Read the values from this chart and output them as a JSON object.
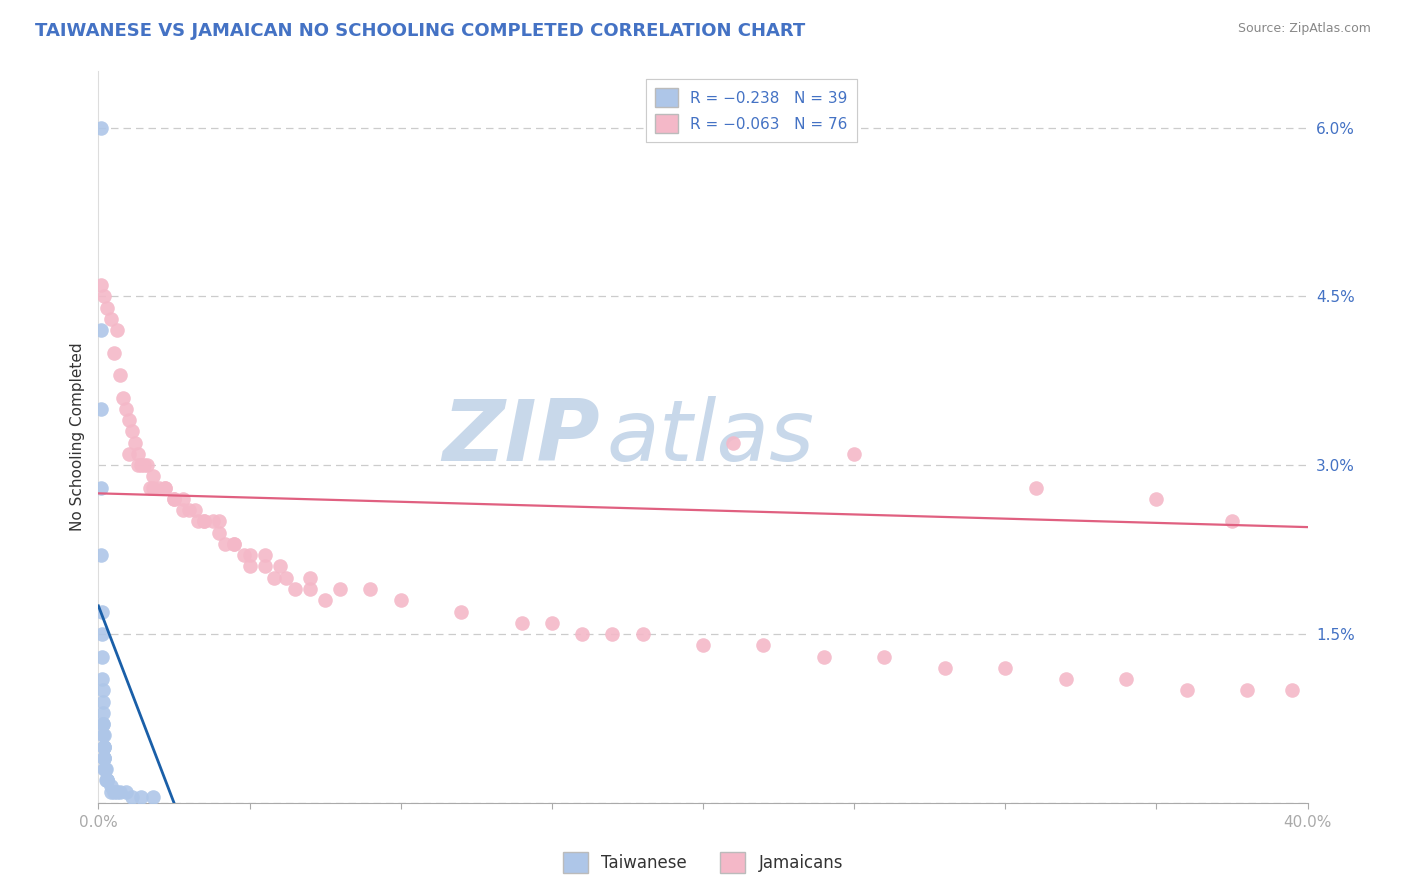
{
  "title": "TAIWANESE VS JAMAICAN NO SCHOOLING COMPLETED CORRELATION CHART",
  "source": "Source: ZipAtlas.com",
  "ylabel": "No Schooling Completed",
  "x_min": 0.0,
  "x_max": 0.4,
  "y_min": 0.0,
  "y_max": 0.065,
  "y_ticks_right": [
    0.0,
    0.015,
    0.03,
    0.045,
    0.06
  ],
  "y_tick_labels_right": [
    "",
    "1.5%",
    "3.0%",
    "4.5%",
    "6.0%"
  ],
  "taiwanese_color": "#aec6e8",
  "jamaican_color": "#f4b8c8",
  "taiwanese_line_color": "#1a5fa8",
  "jamaican_line_color": "#e06080",
  "background_color": "#ffffff",
  "watermark_color": "#ccdcee",
  "title_color": "#4472c4",
  "legend_r1": "R = −0.238",
  "legend_n1": "N = 39",
  "legend_r2": "R = −0.063",
  "legend_n2": "N = 76",
  "tw_line_x0": 0.0,
  "tw_line_x1": 0.025,
  "tw_line_y0": 0.0175,
  "tw_line_y1": 0.0,
  "jam_line_x0": 0.0,
  "jam_line_x1": 0.4,
  "jam_line_y0": 0.0275,
  "jam_line_y1": 0.0245,
  "taiwanese_x": [
    0.0008,
    0.001,
    0.001,
    0.001,
    0.001,
    0.0012,
    0.0012,
    0.0013,
    0.0013,
    0.0014,
    0.0015,
    0.0015,
    0.0015,
    0.0016,
    0.0016,
    0.0017,
    0.0017,
    0.0018,
    0.0018,
    0.002,
    0.002,
    0.002,
    0.002,
    0.0022,
    0.0022,
    0.0025,
    0.0025,
    0.003,
    0.003,
    0.003,
    0.004,
    0.004,
    0.005,
    0.006,
    0.007,
    0.009,
    0.011,
    0.014,
    0.018
  ],
  "taiwanese_y": [
    0.06,
    0.042,
    0.035,
    0.028,
    0.022,
    0.017,
    0.015,
    0.013,
    0.011,
    0.01,
    0.009,
    0.008,
    0.007,
    0.007,
    0.006,
    0.006,
    0.005,
    0.005,
    0.005,
    0.004,
    0.004,
    0.004,
    0.003,
    0.003,
    0.003,
    0.003,
    0.002,
    0.002,
    0.002,
    0.002,
    0.0015,
    0.001,
    0.001,
    0.001,
    0.001,
    0.001,
    0.0005,
    0.0005,
    0.0005
  ],
  "jamaican_x": [
    0.001,
    0.002,
    0.003,
    0.004,
    0.005,
    0.006,
    0.007,
    0.008,
    0.009,
    0.01,
    0.011,
    0.012,
    0.013,
    0.014,
    0.016,
    0.017,
    0.018,
    0.02,
    0.022,
    0.025,
    0.028,
    0.03,
    0.033,
    0.035,
    0.038,
    0.04,
    0.042,
    0.045,
    0.048,
    0.05,
    0.055,
    0.058,
    0.062,
    0.065,
    0.07,
    0.075,
    0.01,
    0.013,
    0.015,
    0.018,
    0.022,
    0.025,
    0.028,
    0.032,
    0.035,
    0.04,
    0.045,
    0.05,
    0.055,
    0.06,
    0.07,
    0.08,
    0.09,
    0.1,
    0.12,
    0.14,
    0.16,
    0.18,
    0.2,
    0.22,
    0.24,
    0.26,
    0.28,
    0.3,
    0.32,
    0.34,
    0.36,
    0.38,
    0.15,
    0.17,
    0.21,
    0.25,
    0.31,
    0.35,
    0.375,
    0.395
  ],
  "jamaican_y": [
    0.046,
    0.045,
    0.044,
    0.043,
    0.04,
    0.042,
    0.038,
    0.036,
    0.035,
    0.034,
    0.033,
    0.032,
    0.031,
    0.03,
    0.03,
    0.028,
    0.029,
    0.028,
    0.028,
    0.027,
    0.027,
    0.026,
    0.025,
    0.025,
    0.025,
    0.024,
    0.023,
    0.023,
    0.022,
    0.021,
    0.021,
    0.02,
    0.02,
    0.019,
    0.019,
    0.018,
    0.031,
    0.03,
    0.03,
    0.028,
    0.028,
    0.027,
    0.026,
    0.026,
    0.025,
    0.025,
    0.023,
    0.022,
    0.022,
    0.021,
    0.02,
    0.019,
    0.019,
    0.018,
    0.017,
    0.016,
    0.015,
    0.015,
    0.014,
    0.014,
    0.013,
    0.013,
    0.012,
    0.012,
    0.011,
    0.011,
    0.01,
    0.01,
    0.016,
    0.015,
    0.032,
    0.031,
    0.028,
    0.027,
    0.025,
    0.01
  ]
}
